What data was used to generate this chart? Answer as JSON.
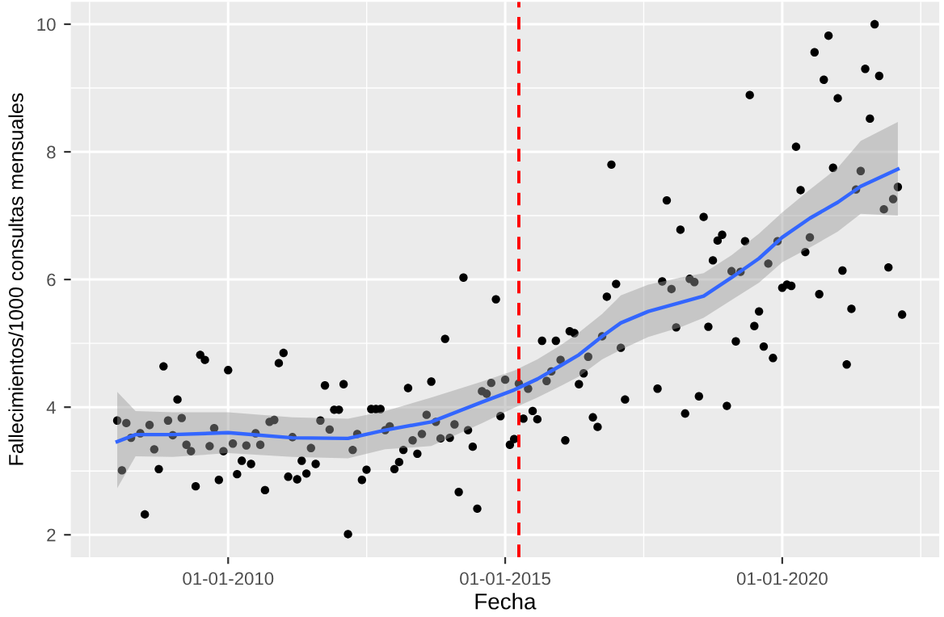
{
  "chart_data": {
    "type": "scatter",
    "xlabel": "Fecha",
    "ylabel": "Fallecimientos/1000 consultas mensuales",
    "xlim": [
      "2007-03",
      "2022-11"
    ],
    "ylim": [
      1.65,
      10.35
    ],
    "xticks": [
      {
        "value": "2010-01-01",
        "label": "01-01-2010"
      },
      {
        "value": "2015-01-01",
        "label": "01-01-2015"
      },
      {
        "value": "2020-01-01",
        "label": "01-01-2020"
      }
    ],
    "yticks": [
      2,
      4,
      6,
      8,
      10
    ],
    "grid": true,
    "ref_lines": [
      {
        "axis": "x",
        "value": "2015-04",
        "color": "#ff0000",
        "line_style": "dashed"
      }
    ],
    "series": [
      {
        "color": "#000000",
        "marker": "circle",
        "x": [
          "2008-01",
          "2008-02",
          "2008-03",
          "2008-04",
          "2008-06",
          "2008-07",
          "2008-08",
          "2008-09",
          "2008-10",
          "2008-11",
          "2008-12",
          "2009-01",
          "2009-02",
          "2009-03",
          "2009-04",
          "2009-05",
          "2009-06",
          "2009-07",
          "2009-08",
          "2009-09",
          "2009-10",
          "2009-11",
          "2009-12",
          "2010-01",
          "2010-02",
          "2010-03",
          "2010-04",
          "2010-05",
          "2010-06",
          "2010-07",
          "2010-08",
          "2010-09",
          "2010-10",
          "2010-11",
          "2010-12",
          "2011-01",
          "2011-02",
          "2011-03",
          "2011-04",
          "2011-05",
          "2011-06",
          "2011-07",
          "2011-08",
          "2011-09",
          "2011-10",
          "2011-11",
          "2011-12",
          "2012-01",
          "2012-02",
          "2012-03",
          "2012-04",
          "2012-05",
          "2012-06",
          "2012-07",
          "2012-08",
          "2012-09",
          "2012-10",
          "2012-11",
          "2012-12",
          "2013-01",
          "2013-02",
          "2013-03",
          "2013-04",
          "2013-05",
          "2013-06",
          "2013-07",
          "2013-08",
          "2013-09",
          "2013-10",
          "2013-11",
          "2013-12",
          "2014-01",
          "2014-02",
          "2014-03",
          "2014-04",
          "2014-05",
          "2014-06",
          "2014-07",
          "2014-08",
          "2014-09",
          "2014-10",
          "2014-11",
          "2014-12",
          "2015-01",
          "2015-02",
          "2015-03",
          "2015-04",
          "2015-05",
          "2015-06",
          "2015-07",
          "2015-08",
          "2015-09",
          "2015-10",
          "2015-11",
          "2015-12",
          "2016-01",
          "2016-02",
          "2016-03",
          "2016-04",
          "2016-05",
          "2016-06",
          "2016-07",
          "2016-08",
          "2016-09",
          "2016-10",
          "2016-11",
          "2016-12",
          "2017-01",
          "2017-02",
          "2017-03",
          "2017-10",
          "2017-11",
          "2017-12",
          "2018-01",
          "2018-02",
          "2018-03",
          "2018-04",
          "2018-05",
          "2018-06",
          "2018-07",
          "2018-08",
          "2018-09",
          "2018-10",
          "2018-11",
          "2018-12",
          "2019-01",
          "2019-02",
          "2019-03",
          "2019-04",
          "2019-05",
          "2019-06",
          "2019-07",
          "2019-08",
          "2019-09",
          "2019-10",
          "2019-11",
          "2019-12",
          "2020-01",
          "2020-02",
          "2020-03",
          "2020-04",
          "2020-05",
          "2020-06",
          "2020-07",
          "2020-08",
          "2020-09",
          "2020-10",
          "2020-11",
          "2020-12",
          "2021-01",
          "2021-02",
          "2021-03",
          "2021-04",
          "2021-05",
          "2021-06",
          "2021-07",
          "2021-08",
          "2021-09",
          "2021-10",
          "2021-11",
          "2021-12",
          "2022-01",
          "2022-02",
          "2022-03"
        ],
        "values": [
          3.79,
          3.01,
          3.75,
          3.52,
          3.59,
          2.32,
          3.72,
          3.34,
          3.03,
          4.64,
          3.79,
          3.56,
          4.12,
          3.83,
          3.41,
          3.31,
          2.76,
          4.82,
          4.74,
          3.39,
          3.67,
          2.86,
          3.31,
          4.58,
          3.43,
          2.95,
          3.16,
          3.4,
          3.11,
          3.59,
          3.41,
          2.7,
          3.77,
          3.8,
          4.69,
          4.85,
          2.91,
          3.53,
          2.87,
          3.16,
          2.96,
          3.36,
          3.11,
          3.79,
          4.34,
          3.65,
          3.96,
          3.96,
          4.36,
          2.01,
          3.33,
          3.58,
          2.86,
          3.02,
          3.97,
          3.97,
          3.97,
          3.64,
          3.7,
          3.03,
          3.14,
          3.33,
          4.3,
          3.48,
          3.27,
          3.58,
          3.88,
          4.4,
          3.77,
          3.51,
          5.07,
          3.52,
          3.73,
          2.67,
          6.03,
          3.64,
          3.38,
          2.41,
          4.25,
          4.21,
          4.38,
          5.69,
          3.86,
          4.43,
          3.41,
          3.5,
          4.37,
          3.82,
          4.29,
          3.94,
          3.81,
          5.04,
          4.41,
          4.56,
          5.04,
          4.74,
          3.48,
          5.19,
          5.16,
          4.36,
          4.53,
          4.79,
          3.84,
          3.69,
          5.11,
          5.73,
          7.8,
          5.93,
          4.93,
          4.12,
          4.29,
          5.97,
          7.24,
          5.85,
          5.25,
          6.78,
          3.9,
          6.01,
          5.96,
          4.17,
          6.98,
          5.26,
          6.3,
          6.61,
          6.7,
          4.02,
          6.13,
          5.03,
          6.12,
          6.6,
          8.89,
          5.27,
          5.5,
          4.95,
          6.25,
          4.77,
          6.6,
          5.87,
          5.92,
          5.9,
          8.08,
          7.4,
          6.43,
          6.66,
          9.56,
          5.77,
          9.13,
          9.82,
          7.75,
          8.84,
          6.14,
          4.67,
          5.54,
          7.41,
          7.7,
          9.3,
          8.52,
          10.0,
          9.19,
          7.1,
          6.19,
          7.26,
          7.45,
          5.45
        ]
      },
      {
        "type": "line",
        "color": "#3366ff",
        "x": [
          "2008-01",
          "2008-05",
          "2009-01",
          "2010-01",
          "2011-03",
          "2012-03",
          "2012-11",
          "2013-09",
          "2014-08",
          "2015-03",
          "2015-08",
          "2016-01",
          "2016-05",
          "2016-10",
          "2017-02",
          "2017-08",
          "2018-03",
          "2018-08",
          "2019-02",
          "2019-08",
          "2020-01",
          "2020-07",
          "2021-01",
          "2021-06",
          "2022-02"
        ],
        "values": [
          3.46,
          3.57,
          3.57,
          3.6,
          3.52,
          3.51,
          3.64,
          3.77,
          4.08,
          4.27,
          4.44,
          4.65,
          4.82,
          5.11,
          5.32,
          5.5,
          5.64,
          5.74,
          6.03,
          6.33,
          6.66,
          6.96,
          7.21,
          7.46,
          7.73
        ],
        "lower": [
          2.73,
          3.23,
          3.22,
          3.28,
          3.22,
          3.2,
          3.34,
          3.39,
          3.75,
          3.99,
          4.15,
          4.33,
          4.48,
          4.75,
          4.9,
          5.1,
          5.25,
          5.4,
          5.68,
          5.95,
          6.27,
          6.5,
          6.75,
          7.03,
          7.0
        ],
        "upper": [
          4.24,
          3.94,
          3.92,
          3.92,
          3.84,
          3.82,
          3.94,
          4.15,
          4.4,
          4.57,
          4.75,
          4.97,
          5.17,
          5.46,
          5.75,
          5.92,
          6.03,
          6.1,
          6.38,
          6.72,
          7.05,
          7.41,
          7.75,
          8.17,
          8.47
        ]
      }
    ]
  }
}
